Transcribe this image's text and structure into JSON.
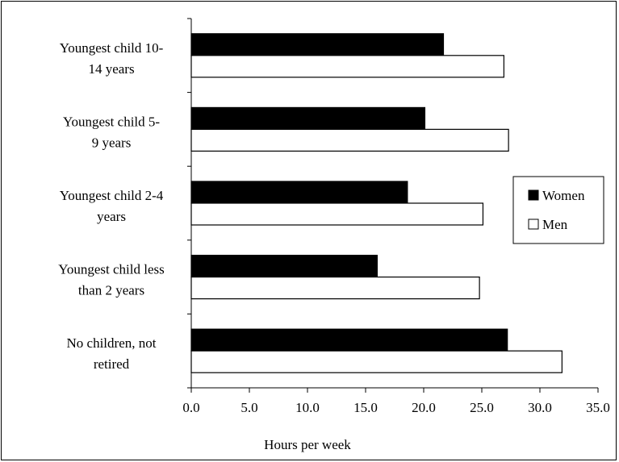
{
  "chart_data": {
    "type": "bar",
    "orientation": "horizontal",
    "categories": [
      [
        "Youngest child 10-",
        "14 years"
      ],
      [
        "Youngest child  5-",
        "9 years"
      ],
      [
        "Youngest child 2-4",
        "years"
      ],
      [
        "Youngest child less",
        "than 2 years"
      ],
      [
        "No children, not",
        "retired"
      ]
    ],
    "series": [
      {
        "name": "Women",
        "values": [
          21.7,
          20.1,
          18.6,
          16.0,
          27.2
        ],
        "color": "#000000"
      },
      {
        "name": "Men",
        "values": [
          26.9,
          27.3,
          25.1,
          24.8,
          31.9
        ],
        "color": "#ffffff"
      }
    ],
    "xlabel": "Hours per week",
    "xlim": [
      0,
      35
    ],
    "xticks": [
      "0.0",
      "5.0",
      "10.0",
      "15.0",
      "20.0",
      "25.0",
      "30.0",
      "35.0"
    ],
    "grid": false,
    "legend": {
      "placement": "right",
      "entries": [
        "Women",
        "Men"
      ]
    }
  }
}
